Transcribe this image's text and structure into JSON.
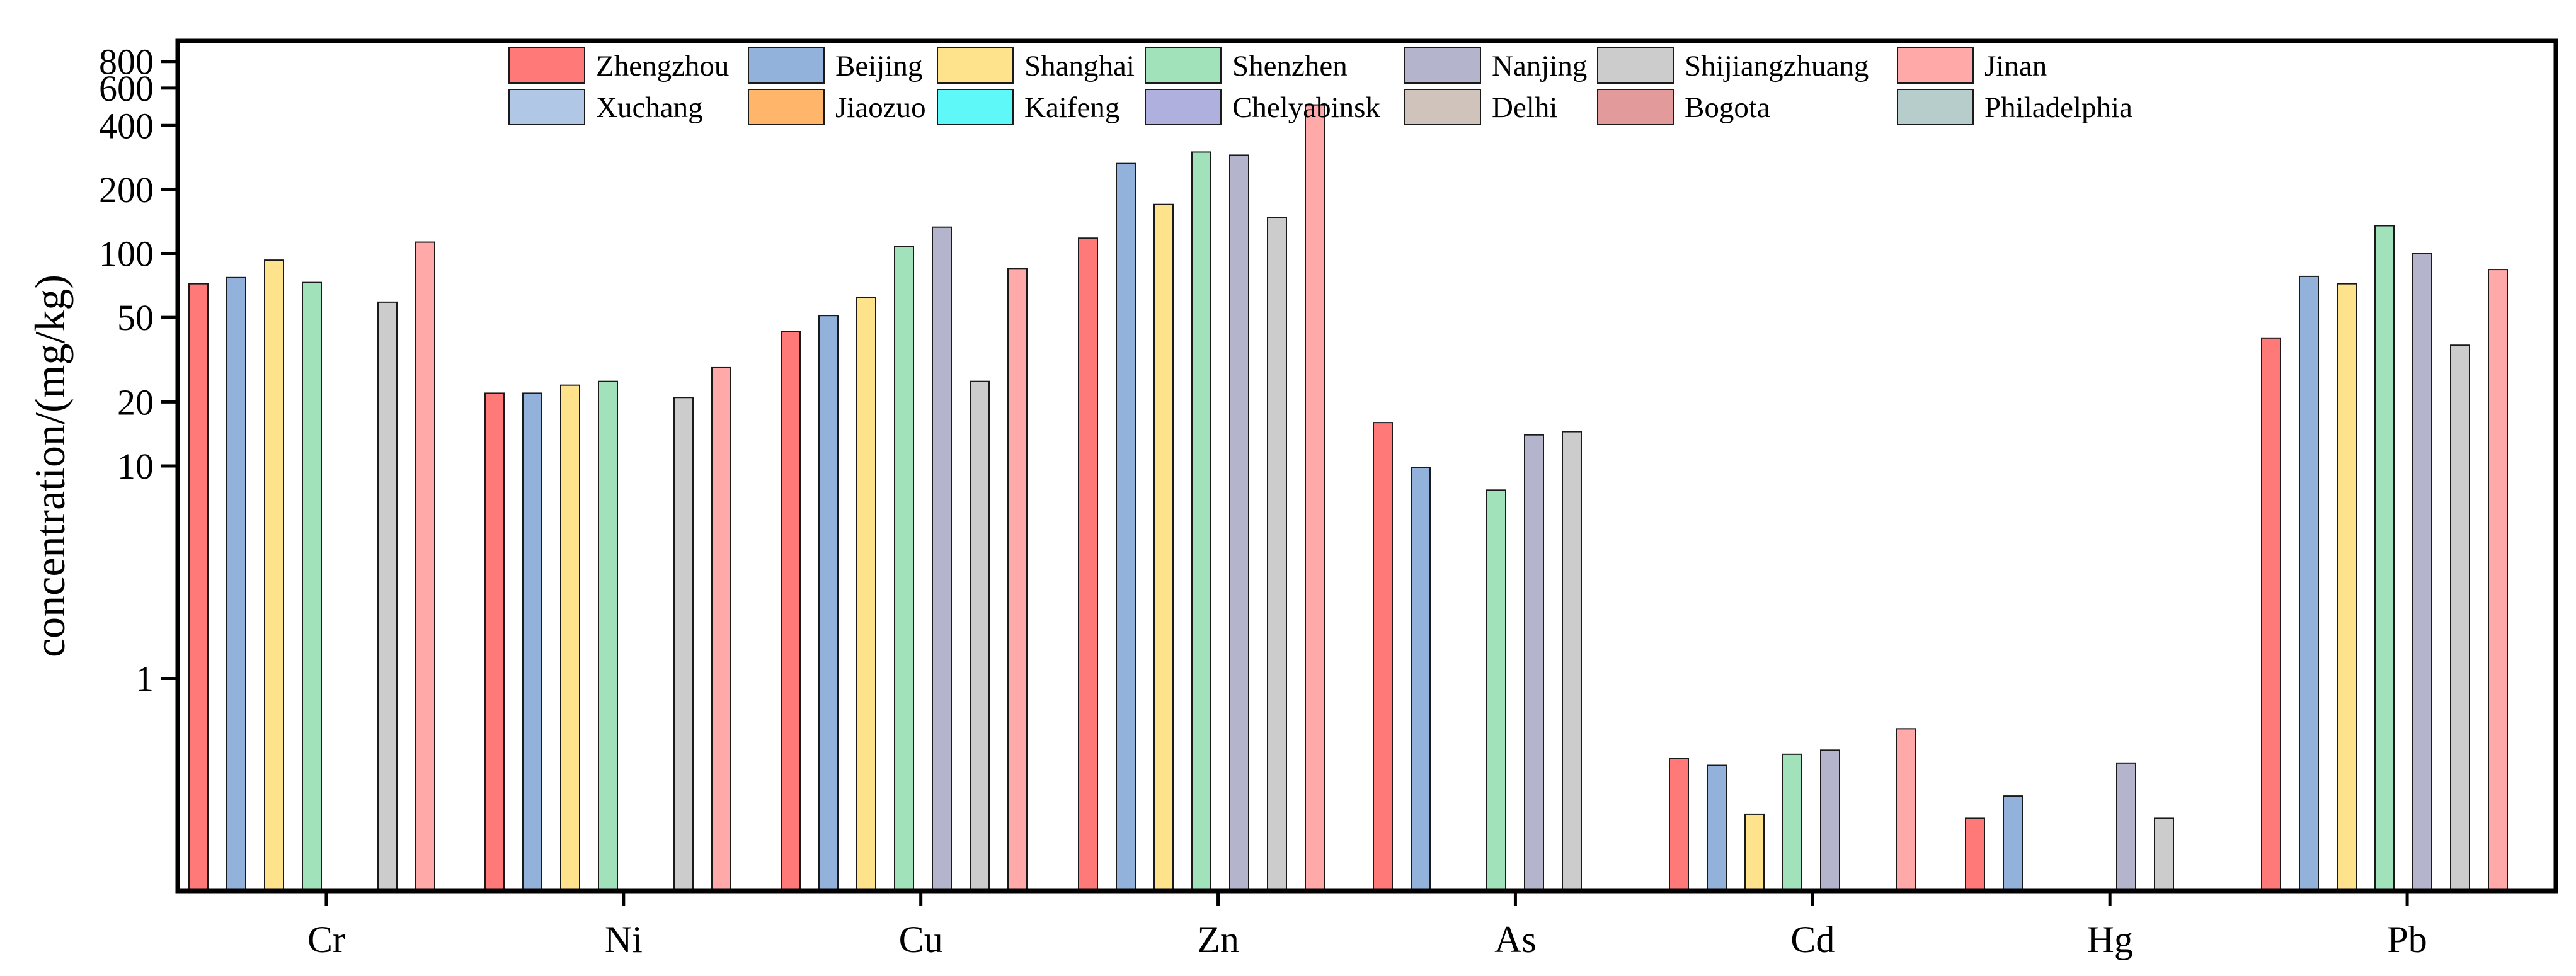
{
  "chart_data": {
    "type": "bar",
    "title": "",
    "xlabel": "",
    "ylabel": "concentration/(mg/kg)",
    "yscale": "log",
    "ylim": [
      0.1,
      1000
    ],
    "yticks": [
      {
        "value": 800,
        "label": "800"
      },
      {
        "value": 600,
        "label": "600"
      },
      {
        "value": 400,
        "label": "400"
      },
      {
        "value": 200,
        "label": "200"
      },
      {
        "value": 100,
        "label": "100"
      },
      {
        "value": 50,
        "label": "50"
      },
      {
        "value": 20,
        "label": "20"
      },
      {
        "value": 10,
        "label": "10"
      },
      {
        "value": 1,
        "label": "1"
      }
    ],
    "legend_position": "top",
    "categories": [
      "Cr",
      "Ni",
      "Cu",
      "Zn",
      "As",
      "Cd",
      "Hg",
      "Pb"
    ],
    "series": [
      {
        "name": "Zhengzhou",
        "color": "#ff7979",
        "values": [
          72,
          22,
          43,
          118,
          16,
          0.42,
          0.22,
          40
        ]
      },
      {
        "name": "Xuchang",
        "color": "#b0c8e6",
        "values": [
          null,
          null,
          null,
          null,
          null,
          null,
          null,
          null
        ]
      },
      {
        "name": "Beijing",
        "color": "#92b2dc",
        "values": [
          77,
          22,
          51,
          265,
          9.8,
          0.39,
          0.28,
          78
        ]
      },
      {
        "name": "Jiaozuo",
        "color": "#ffb66b",
        "values": [
          null,
          null,
          null,
          null,
          null,
          null,
          null,
          null
        ]
      },
      {
        "name": "Shanghai",
        "color": "#ffe38c",
        "values": [
          93,
          24,
          62,
          170,
          null,
          0.23,
          null,
          72
        ]
      },
      {
        "name": "Kaifeng",
        "color": "#5ff8f8",
        "values": [
          null,
          null,
          null,
          null,
          null,
          null,
          null,
          null
        ]
      },
      {
        "name": "Shenzhen",
        "color": "#a2e2bb",
        "values": [
          73,
          25,
          108,
          300,
          7.7,
          0.44,
          null,
          135
        ]
      },
      {
        "name": "Chelyabinsk",
        "color": "#b0b0df",
        "values": [
          null,
          null,
          null,
          null,
          null,
          null,
          null,
          null
        ]
      },
      {
        "name": "Nanjing",
        "color": "#b4b4cc",
        "values": [
          null,
          null,
          133,
          290,
          14,
          0.46,
          0.4,
          100
        ]
      },
      {
        "name": "Delhi",
        "color": "#cfc3bc",
        "values": [
          null,
          null,
          null,
          null,
          null,
          null,
          null,
          null
        ]
      },
      {
        "name": "Shijiangzhuang",
        "color": "#cccccc",
        "values": [
          59,
          21,
          25,
          148,
          14.5,
          null,
          0.22,
          37
        ]
      },
      {
        "name": "Bogota",
        "color": "#e39a9a",
        "values": [
          null,
          null,
          null,
          null,
          null,
          null,
          null,
          null
        ]
      },
      {
        "name": "Jinan",
        "color": "#ffa9a9",
        "values": [
          113,
          29,
          85,
          500,
          null,
          0.58,
          null,
          84
        ]
      },
      {
        "name": "Philadelphia",
        "color": "#b6cdcb",
        "values": [
          null,
          null,
          null,
          null,
          null,
          null,
          null,
          null
        ]
      }
    ]
  }
}
